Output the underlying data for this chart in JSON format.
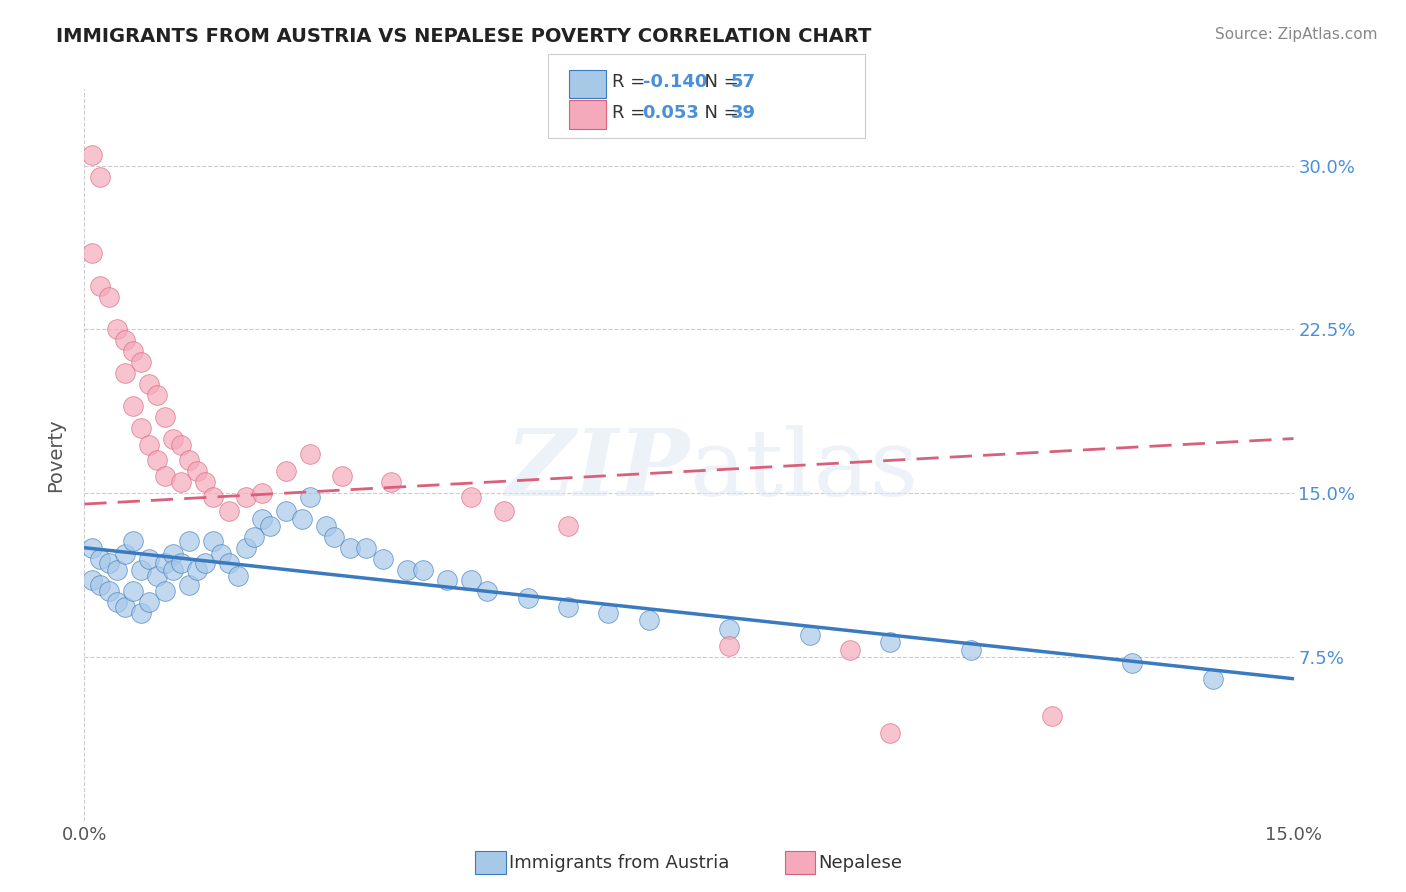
{
  "title": "IMMIGRANTS FROM AUSTRIA VS NEPALESE POVERTY CORRELATION CHART",
  "source": "Source: ZipAtlas.com",
  "ylabel": "Poverty",
  "y_ticks": [
    "7.5%",
    "15.0%",
    "22.5%",
    "30.0%"
  ],
  "y_tick_vals": [
    0.075,
    0.15,
    0.225,
    0.3
  ],
  "x_lim": [
    0.0,
    0.15
  ],
  "y_lim": [
    0.0,
    0.335
  ],
  "blue_color": "#a8c8e8",
  "pink_color": "#f4aaba",
  "line_blue_color": "#3a7abf",
  "line_pink_color": "#d9607a",
  "watermark": "ZIPatlas",
  "blue_scatter_x": [
    0.001,
    0.001,
    0.002,
    0.002,
    0.003,
    0.003,
    0.004,
    0.004,
    0.005,
    0.005,
    0.006,
    0.006,
    0.007,
    0.007,
    0.008,
    0.008,
    0.009,
    0.01,
    0.01,
    0.011,
    0.011,
    0.012,
    0.013,
    0.013,
    0.014,
    0.015,
    0.016,
    0.017,
    0.018,
    0.019,
    0.02,
    0.021,
    0.022,
    0.023,
    0.025,
    0.027,
    0.028,
    0.03,
    0.031,
    0.033,
    0.035,
    0.037,
    0.04,
    0.042,
    0.045,
    0.048,
    0.05,
    0.055,
    0.06,
    0.065,
    0.07,
    0.08,
    0.09,
    0.1,
    0.11,
    0.13,
    0.14
  ],
  "blue_scatter_y": [
    0.125,
    0.11,
    0.12,
    0.108,
    0.118,
    0.105,
    0.115,
    0.1,
    0.122,
    0.098,
    0.128,
    0.105,
    0.115,
    0.095,
    0.12,
    0.1,
    0.112,
    0.118,
    0.105,
    0.122,
    0.115,
    0.118,
    0.128,
    0.108,
    0.115,
    0.118,
    0.128,
    0.122,
    0.118,
    0.112,
    0.125,
    0.13,
    0.138,
    0.135,
    0.142,
    0.138,
    0.148,
    0.135,
    0.13,
    0.125,
    0.125,
    0.12,
    0.115,
    0.115,
    0.11,
    0.11,
    0.105,
    0.102,
    0.098,
    0.095,
    0.092,
    0.088,
    0.085,
    0.082,
    0.078,
    0.072,
    0.065
  ],
  "pink_scatter_x": [
    0.001,
    0.001,
    0.002,
    0.002,
    0.003,
    0.004,
    0.005,
    0.005,
    0.006,
    0.006,
    0.007,
    0.007,
    0.008,
    0.008,
    0.009,
    0.009,
    0.01,
    0.01,
    0.011,
    0.012,
    0.012,
    0.013,
    0.014,
    0.015,
    0.016,
    0.018,
    0.02,
    0.022,
    0.025,
    0.028,
    0.032,
    0.038,
    0.048,
    0.052,
    0.06,
    0.08,
    0.095,
    0.1,
    0.12
  ],
  "pink_scatter_y": [
    0.305,
    0.26,
    0.295,
    0.245,
    0.24,
    0.225,
    0.22,
    0.205,
    0.215,
    0.19,
    0.21,
    0.18,
    0.2,
    0.172,
    0.195,
    0.165,
    0.185,
    0.158,
    0.175,
    0.172,
    0.155,
    0.165,
    0.16,
    0.155,
    0.148,
    0.142,
    0.148,
    0.15,
    0.16,
    0.168,
    0.158,
    0.155,
    0.148,
    0.142,
    0.135,
    0.08,
    0.078,
    0.04,
    0.048
  ],
  "blue_line_x0": 0.0,
  "blue_line_x1": 0.15,
  "blue_line_y0": 0.125,
  "blue_line_y1": 0.065,
  "pink_line_x0": 0.0,
  "pink_line_x1": 0.15,
  "pink_line_y0": 0.145,
  "pink_line_y1": 0.175
}
